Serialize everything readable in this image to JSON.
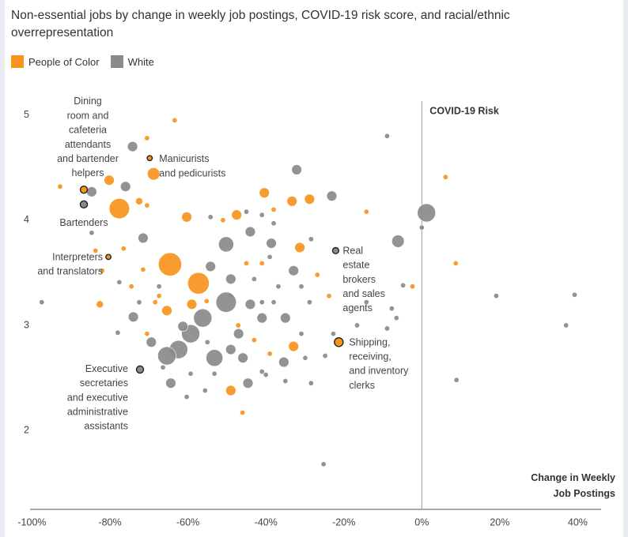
{
  "chart_data": {
    "type": "bubble",
    "title": "Non-essential jobs by change in weekly job postings, COVID-19 risk score, and racial/ethnic overrepresentation",
    "xlabel": [
      "Change in Weekly",
      "Job Postings"
    ],
    "ylabel": "COVID-19 Risk",
    "xlim": [
      -100.5,
      46
    ],
    "ylim": [
      1.25,
      5.2
    ],
    "xticks": [
      {
        "value": -100,
        "label": "-100%"
      },
      {
        "value": -80,
        "label": "-80%"
      },
      {
        "value": -60,
        "label": "-60%"
      },
      {
        "value": -40,
        "label": "-40%"
      },
      {
        "value": -20,
        "label": "-20%"
      },
      {
        "value": 0,
        "label": "0%"
      },
      {
        "value": 20,
        "label": "20%"
      },
      {
        "value": 40,
        "label": "40%"
      }
    ],
    "yticks": [
      2,
      3,
      4,
      5
    ],
    "series": [
      {
        "name": "People of Color",
        "color": "#f7941d",
        "x": [
          -63.4,
          -70.5,
          -92.8,
          -80.2,
          -77.6,
          -68.8,
          -72.5,
          -70.5,
          -60.3,
          -47.5,
          -40.4,
          -33.3,
          -28.8,
          -38,
          -14.2,
          6.1,
          8.7,
          -31.3,
          -64.6,
          -57.3,
          -71.5,
          -82,
          -82.6,
          -76.5,
          -67.4,
          -65.4,
          -68.4,
          -59,
          -55.2,
          -49,
          -45,
          -41,
          -26.8,
          -23.8,
          -2.4,
          -47.1,
          -43,
          -32.9,
          -39,
          -49,
          -46,
          -70.5,
          -74.5,
          -83.7,
          -51
        ],
        "values": [
          4.95,
          4.78,
          4.32,
          4.38,
          4.11,
          4.44,
          4.18,
          4.14,
          4.03,
          4.05,
          4.26,
          4.18,
          4.2,
          4.1,
          4.08,
          4.41,
          3.59,
          3.74,
          3.58,
          3.4,
          3.53,
          3.52,
          3.2,
          3.73,
          3.28,
          3.14,
          3.22,
          3.2,
          3.23,
          3.28,
          3.59,
          3.59,
          3.48,
          3.28,
          3.37,
          3.0,
          2.86,
          2.8,
          2.73,
          2.38,
          2.17,
          2.92,
          3.37,
          3.71,
          4.0
        ],
        "sizes": [
          1,
          1,
          1,
          4,
          16,
          6,
          2,
          1,
          4,
          4,
          4,
          4,
          4,
          1,
          1,
          1,
          1,
          4,
          21,
          18,
          1,
          1,
          2,
          1,
          1,
          4,
          1,
          4,
          1,
          1,
          1,
          1,
          1,
          1,
          1,
          1,
          1,
          4,
          1,
          4,
          1,
          1,
          1,
          1,
          1
        ]
      },
      {
        "name": "White",
        "color": "#8a8a8a",
        "x": [
          -8.9,
          -74.2,
          -32.1,
          -84.7,
          -76,
          -23.1,
          1.2,
          -6.1,
          0,
          -71.5,
          -50.2,
          -44,
          -54.2,
          -38.6,
          -28.4,
          -84.7,
          -54.2,
          -49,
          -43,
          -39,
          -36.8,
          -32.9,
          -30.9,
          -28.8,
          -50.2,
          -56.2,
          -59.3,
          -62.4,
          -65.4,
          -53.2,
          -49,
          -47,
          -41,
          -38,
          -35,
          -45.9,
          -55,
          -35.4,
          -29.9,
          -24.8,
          -22.7,
          -16.6,
          -8.9,
          -14.2,
          -7.7,
          -4.8,
          19.1,
          39.2,
          37,
          8.9,
          -97.5,
          -78,
          -74,
          -72.5,
          -69.4,
          -66.4,
          -64.4,
          -59.3,
          -55.6,
          -44.6,
          -40,
          -35,
          -28.4,
          -25.2,
          -41,
          -53.2,
          -61.3,
          -44,
          -41,
          -67.4,
          -77.6,
          -60.3,
          -45,
          -41,
          -38,
          -6.5,
          -30.9
        ],
        "values": [
          4.8,
          4.7,
          4.48,
          4.27,
          4.32,
          4.23,
          4.07,
          3.8,
          3.93,
          3.83,
          3.77,
          3.89,
          4.03,
          3.78,
          3.82,
          3.88,
          3.56,
          3.44,
          3.44,
          3.65,
          3.37,
          3.52,
          3.37,
          3.22,
          3.22,
          3.07,
          2.92,
          2.77,
          2.71,
          2.69,
          2.77,
          2.92,
          3.07,
          3.22,
          3.07,
          2.69,
          2.84,
          2.65,
          2.69,
          2.71,
          2.92,
          3.0,
          2.97,
          3.22,
          3.16,
          3.38,
          3.28,
          3.29,
          3.0,
          2.48,
          3.22,
          2.93,
          3.08,
          3.22,
          2.84,
          2.6,
          2.45,
          2.54,
          2.38,
          2.45,
          2.53,
          2.47,
          2.45,
          1.68,
          2.56,
          2.54,
          2.99,
          3.2,
          3.22,
          3.37,
          3.41,
          2.32,
          4.08,
          4.05,
          3.97,
          3.07,
          2.92
        ],
        "sizes": [
          1,
          4,
          4,
          4,
          4,
          4,
          13,
          6,
          1,
          4,
          9,
          4,
          1,
          4,
          1,
          1,
          4,
          4,
          1,
          1,
          1,
          4,
          1,
          1,
          16,
          13,
          13,
          13,
          13,
          11,
          4,
          4,
          4,
          1,
          4,
          4,
          1,
          4,
          1,
          1,
          1,
          1,
          1,
          1,
          1,
          1,
          1,
          1,
          1,
          1,
          1,
          1,
          4,
          1,
          4,
          1,
          4,
          1,
          1,
          4,
          1,
          1,
          1,
          1,
          1,
          1,
          4,
          4,
          1,
          1,
          1,
          1,
          1,
          1,
          1,
          1,
          1
        ]
      }
    ],
    "annotations": [
      {
        "text": [
          "Dining",
          "room and",
          "cafeteria",
          "attendants",
          "and bartender",
          "helpers"
        ],
        "x": -86.7,
        "y": 4.29,
        "size": 2,
        "color": "#f7941d"
      },
      {
        "text": [
          "Manicurists",
          "and pedicurists"
        ],
        "x": -69.8,
        "y": 4.59,
        "size": 1,
        "color": "#f7941d"
      },
      {
        "text": [
          "Bartenders"
        ],
        "x": -86.7,
        "y": 4.15,
        "size": 2,
        "color": "#8a8a8a"
      },
      {
        "text": [
          "Interpreters",
          "and translators"
        ],
        "x": -80.4,
        "y": 3.65,
        "size": 1,
        "color": "#f7941d"
      },
      {
        "text": [
          "Real",
          "estate",
          "brokers",
          "and sales",
          "agents"
        ],
        "x": -22.1,
        "y": 3.71,
        "size": 1.5,
        "color": "#8a8a8a"
      },
      {
        "text": [
          "Shipping,",
          "receiving,",
          "and inventory",
          "clerks"
        ],
        "x": -21.3,
        "y": 2.84,
        "size": 3,
        "color": "#f7941d"
      },
      {
        "text": [
          "Executive",
          "secretaries",
          "and executive",
          "administrative",
          "assistants"
        ],
        "x": -72.3,
        "y": 2.58,
        "size": 2,
        "color": "#8a8a8a"
      }
    ]
  }
}
